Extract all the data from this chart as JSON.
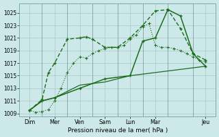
{
  "xlabel": "Pression niveau de la mer( hPa )",
  "background_color": "#cce8e8",
  "grid_color": "#b0cccc",
  "line_color": "#1a6b1a",
  "dark_line_color": "#2d7a2d",
  "ylim": [
    1008.5,
    1026.5
  ],
  "yticks": [
    1009,
    1011,
    1013,
    1015,
    1017,
    1019,
    1021,
    1023,
    1025
  ],
  "xlim": [
    -0.3,
    15.3
  ],
  "xtick_labels": [
    "Dim",
    "Mer",
    "Ven",
    "Sam",
    "Lun",
    "Mar",
    "Jeu"
  ],
  "xtick_positions": [
    0.5,
    2.5,
    4.5,
    6.5,
    8.5,
    10.5,
    14.5
  ],
  "vline_positions": [
    1.5,
    3.5,
    5.5,
    7.5,
    9.5,
    11.5,
    13.5
  ],
  "line_dotted_x": [
    0.5,
    1.0,
    1.5,
    2.0,
    2.5,
    3.0,
    3.5,
    4.0,
    4.5,
    5.0,
    5.5,
    6.0,
    6.5,
    7.0,
    7.5,
    8.0,
    8.5,
    9.0,
    9.5,
    10.0,
    10.5,
    11.0,
    11.5,
    12.0,
    12.5,
    13.0,
    13.5,
    14.0,
    14.5
  ],
  "line_dotted_y": [
    1009.5,
    1009.2,
    1009.3,
    1009.6,
    1011.0,
    1013.0,
    1015.5,
    1017.0,
    1018.0,
    1017.8,
    1018.5,
    1019.0,
    1019.3,
    1019.5,
    1019.5,
    1019.8,
    1020.8,
    1021.5,
    1022.8,
    1023.3,
    1019.8,
    1019.5,
    1019.5,
    1019.3,
    1019.0,
    1018.5,
    1018.0,
    1017.5,
    1017.2
  ],
  "line_dashed_x": [
    0.5,
    1.5,
    2.0,
    2.5,
    3.5,
    4.5,
    5.0,
    5.5,
    6.5,
    7.5,
    8.5,
    9.5,
    10.5,
    11.5,
    12.5,
    13.5,
    14.5
  ],
  "line_dashed_y": [
    1009.5,
    1011.2,
    1015.5,
    1017.0,
    1020.8,
    1021.0,
    1021.2,
    1020.8,
    1019.5,
    1019.5,
    1021.0,
    1023.0,
    1025.3,
    1025.5,
    1022.5,
    1018.5,
    1017.5
  ],
  "line_solid_x": [
    0.5,
    1.5,
    2.5,
    4.5,
    6.5,
    8.5,
    9.5,
    10.5,
    11.5,
    12.5,
    13.5,
    14.5
  ],
  "line_solid_y": [
    1009.5,
    1011.0,
    1011.5,
    1013.0,
    1014.5,
    1015.0,
    1020.5,
    1021.0,
    1025.5,
    1024.5,
    1018.5,
    1016.5
  ],
  "line_thin_x": [
    0.5,
    1.5,
    2.5,
    4.5,
    6.5,
    8.5,
    14.5
  ],
  "line_thin_y": [
    1009.5,
    1011.0,
    1011.5,
    1013.5,
    1014.0,
    1015.0,
    1016.5
  ]
}
